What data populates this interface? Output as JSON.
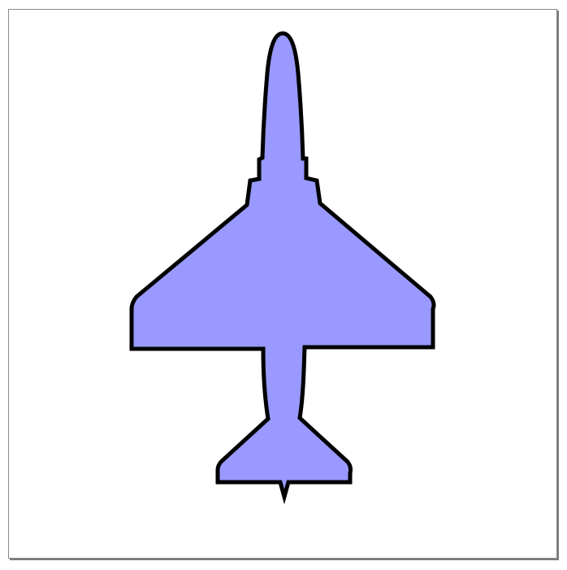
{
  "canvas": {
    "background": "#ffffff",
    "border_color": "#8a8a8a",
    "shadow_color": "#7a7a7a"
  },
  "shape": {
    "name": "jet-aircraft-silhouette",
    "icon": "airplane-icon",
    "fill_color": "#9999ff",
    "stroke_color": "#000000"
  }
}
